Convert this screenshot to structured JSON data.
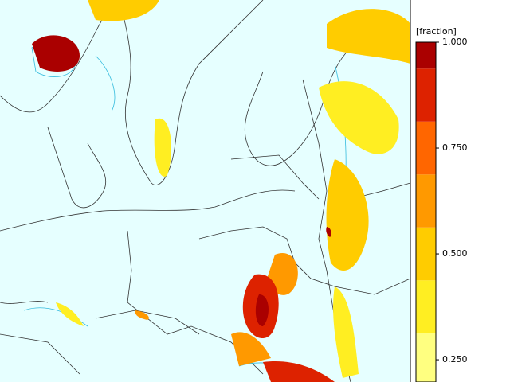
{
  "colorbar": {
    "label": "[fraction]",
    "ylim": [
      0.1975,
      1.0
    ],
    "ticks": [
      {
        "value": 1.0,
        "label": "1.000"
      },
      {
        "value": 0.75,
        "label": "0.750"
      },
      {
        "value": 0.5,
        "label": "0.500"
      },
      {
        "value": 0.25,
        "label": "0.250"
      }
    ],
    "bands": [
      {
        "from": 0.1875,
        "to": 0.3125,
        "color": "#ffff80"
      },
      {
        "from": 0.3125,
        "to": 0.4375,
        "color": "#ffee22"
      },
      {
        "from": 0.4375,
        "to": 0.5625,
        "color": "#ffcc00"
      },
      {
        "from": 0.5625,
        "to": 0.6875,
        "color": "#ff9900"
      },
      {
        "from": 0.6875,
        "to": 0.8125,
        "color": "#ff6600"
      },
      {
        "from": 0.8125,
        "to": 0.9375,
        "color": "#dd2200"
      },
      {
        "from": 0.9375,
        "to": 1.0,
        "color": "#aa0000"
      }
    ]
  }
}
